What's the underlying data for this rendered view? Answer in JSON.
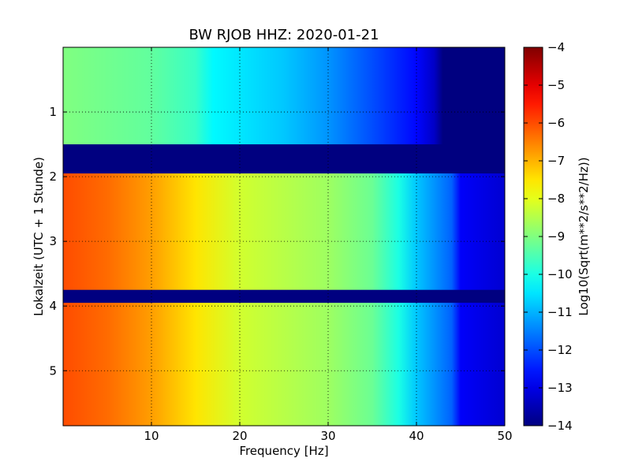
{
  "chart_data": {
    "type": "heatmap",
    "title": "BW RJOB HHZ: 2020-01-21",
    "xlabel": "Frequency [Hz]",
    "ylabel": "Lokalzeit (UTC + 1 Stunde)",
    "colorbar_label": "Log10(Sqrt(m**2/s**2/Hz))",
    "colormap": "jet",
    "xlim": [
      0,
      50
    ],
    "ylim": [
      5.85,
      0
    ],
    "clim": [
      -14,
      -4
    ],
    "x_ticks": [
      10,
      20,
      30,
      40,
      50
    ],
    "y_ticks": [
      1,
      2,
      3,
      4,
      5
    ],
    "colorbar_ticks": [
      -4,
      -5,
      -6,
      -7,
      -8,
      -9,
      -10,
      -11,
      -12,
      -13,
      -14
    ],
    "grid": true,
    "frequency_profiles": [
      {
        "time_range": [
          0,
          1.5
        ],
        "points": [
          [
            0,
            -9.0
          ],
          [
            10,
            -9.3
          ],
          [
            15,
            -9.7
          ],
          [
            17,
            -10.3
          ],
          [
            25,
            -10.8
          ],
          [
            30,
            -11.3
          ],
          [
            35,
            -12.0
          ],
          [
            40,
            -12.7
          ],
          [
            42,
            -13.3
          ],
          [
            43,
            -14.0
          ],
          [
            50,
            -14.0
          ]
        ]
      },
      {
        "time_range": [
          1.5,
          1.95
        ],
        "points": [
          [
            0,
            -14.0
          ],
          [
            50,
            -14.0
          ]
        ]
      },
      {
        "time_range": [
          1.95,
          3.75
        ],
        "points": [
          [
            0,
            -6.0
          ],
          [
            5,
            -6.3
          ],
          [
            10,
            -6.8
          ],
          [
            15,
            -7.5
          ],
          [
            20,
            -8.2
          ],
          [
            30,
            -8.7
          ],
          [
            35,
            -9.2
          ],
          [
            38,
            -10.0
          ],
          [
            40,
            -10.8
          ],
          [
            44,
            -11.8
          ],
          [
            45,
            -12.8
          ],
          [
            50,
            -13.2
          ]
        ]
      },
      {
        "time_range": [
          3.75,
          3.95
        ],
        "points": [
          [
            0,
            -14.0
          ],
          [
            50,
            -14.0
          ]
        ]
      },
      {
        "time_range": [
          3.95,
          5.85
        ],
        "points": [
          [
            0,
            -6.0
          ],
          [
            5,
            -6.3
          ],
          [
            10,
            -6.8
          ],
          [
            15,
            -7.5
          ],
          [
            20,
            -8.2
          ],
          [
            30,
            -8.7
          ],
          [
            35,
            -9.2
          ],
          [
            38,
            -10.0
          ],
          [
            40,
            -10.8
          ],
          [
            44,
            -11.8
          ],
          [
            45,
            -12.8
          ],
          [
            50,
            -13.2
          ]
        ]
      }
    ]
  }
}
